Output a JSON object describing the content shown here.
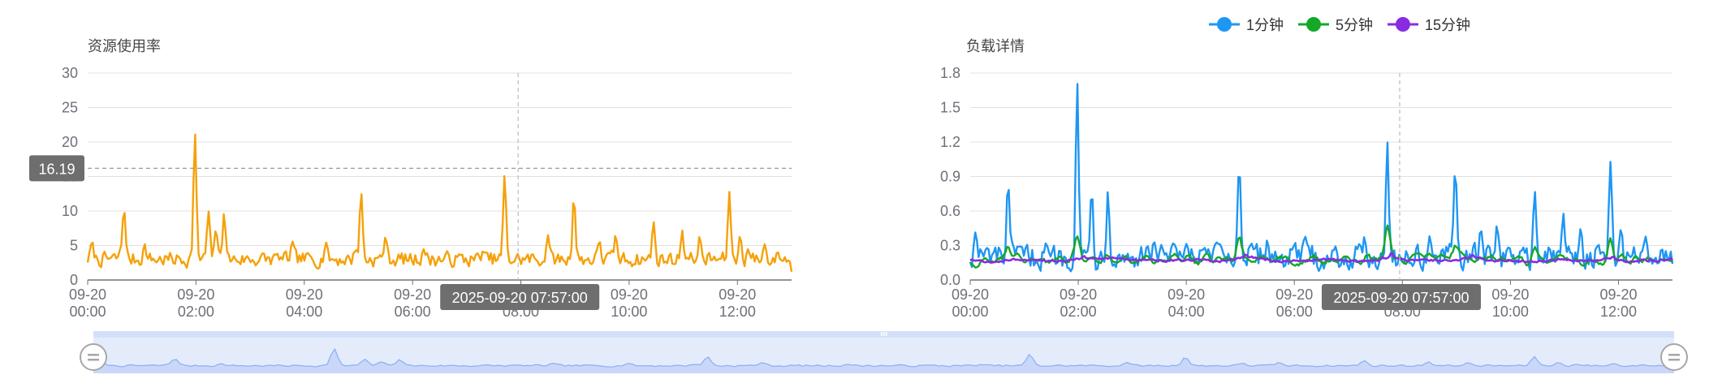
{
  "colors": {
    "usage": "#f5a10a",
    "load_1": "#1e96f3",
    "load_5": "#14a828",
    "load_15": "#8a2be2",
    "axis_pointer_bg": "#6e6e6e",
    "slider_fill": "#e4ecfb",
    "slider_line": "#8fb0f7",
    "grid": "#e0e0e0"
  },
  "legend": [
    {
      "name": "1分钟",
      "color_key": "load_1",
      "icon": "circle-line-icon"
    },
    {
      "name": "5分钟",
      "color_key": "load_5",
      "icon": "circle-line-icon"
    },
    {
      "name": "15分钟",
      "color_key": "load_15",
      "icon": "circle-line-icon"
    }
  ],
  "axis_pointer": {
    "time_label": "2025-09-20 07:57:00",
    "y_label": "16.19"
  },
  "data_zoom": {
    "handle_icon": "drag-handle-icon",
    "grip_icon": "grip-icon",
    "range_start": "09-20 00:00",
    "range_end": "09-20 13:00"
  },
  "chart_data": [
    {
      "type": "line",
      "title": "资源使用率",
      "x_ticks": [
        "09-20\n00:00",
        "09-20\n02:00",
        "09-20\n04:00",
        "09-20\n06:00",
        "09-20\n08:00",
        "09-20\n10:00",
        "09-20\n12:00"
      ],
      "x_tick_hours": [
        0,
        2,
        4,
        6,
        8,
        10,
        12
      ],
      "x_range_hours": [
        0,
        13
      ],
      "y_ticks": [
        0,
        5,
        10,
        15,
        20,
        25,
        30
      ],
      "ylim": [
        0,
        30
      ],
      "grid": true,
      "series": [
        {
          "color_key": "usage",
          "base": [
            1.5,
            4.5
          ],
          "peaks": [
            [
              0.08,
              5.6
            ],
            [
              0.6,
              4.2
            ],
            [
              0.67,
              10.6
            ],
            [
              1.05,
              5.2
            ],
            [
              1.98,
              21.5
            ],
            [
              2.23,
              10
            ],
            [
              2.37,
              7.5
            ],
            [
              2.52,
              9.8
            ],
            [
              3.5,
              3.8
            ],
            [
              3.78,
              5.6
            ],
            [
              4.4,
              5.5
            ],
            [
              4.95,
              4.5
            ],
            [
              5.05,
              12.8
            ],
            [
              5.5,
              6.3
            ],
            [
              6.2,
              4.5
            ],
            [
              7.3,
              4.2
            ],
            [
              7.7,
              15.3
            ],
            [
              8.5,
              6.5
            ],
            [
              8.98,
              12.3
            ],
            [
              9.45,
              5.8
            ],
            [
              9.75,
              6.5
            ],
            [
              10.45,
              8.5
            ],
            [
              10.98,
              7.2
            ],
            [
              11.3,
              6.3
            ],
            [
              11.85,
              12.8
            ],
            [
              12.05,
              6.5
            ],
            [
              12.2,
              4.5
            ],
            [
              12.5,
              5.2
            ],
            [
              12.75,
              4.0
            ]
          ],
          "end_value": 1.2
        }
      ]
    },
    {
      "type": "line",
      "title": "负载详情",
      "x_ticks": [
        "09-20\n00:00",
        "09-20\n02:00",
        "09-20\n04:00",
        "09-20\n06:00",
        "09-20\n08:00",
        "09-20\n10:00",
        "09-20\n12:00"
      ],
      "x_tick_hours": [
        0,
        2,
        4,
        6,
        8,
        10,
        12
      ],
      "x_range_hours": [
        0,
        13
      ],
      "y_ticks": [
        0,
        0.3,
        0.6,
        0.9,
        1.2,
        1.5,
        1.8
      ],
      "ylim": [
        0,
        1.8
      ],
      "grid": true,
      "series": [
        {
          "name": "1分钟",
          "color_key": "load_1",
          "base": [
            0.05,
            0.35
          ],
          "peaks": [
            [
              0.1,
              0.42
            ],
            [
              0.7,
              0.85
            ],
            [
              1.4,
              0.32
            ],
            [
              1.98,
              1.74
            ],
            [
              2.25,
              0.8
            ],
            [
              2.55,
              0.78
            ],
            [
              3.4,
              0.35
            ],
            [
              4.6,
              0.32
            ],
            [
              4.98,
              1.03
            ],
            [
              5.5,
              0.35
            ],
            [
              6.2,
              0.38
            ],
            [
              7.3,
              0.38
            ],
            [
              7.72,
              1.22
            ],
            [
              8.5,
              0.38
            ],
            [
              8.98,
              0.99
            ],
            [
              9.45,
              0.45
            ],
            [
              9.75,
              0.48
            ],
            [
              10.45,
              0.78
            ],
            [
              10.98,
              0.58
            ],
            [
              11.3,
              0.45
            ],
            [
              11.85,
              1.03
            ],
            [
              12.05,
              0.45
            ],
            [
              12.5,
              0.38
            ],
            [
              12.8,
              0.28
            ]
          ],
          "end_value": 0.14
        },
        {
          "name": "5分钟",
          "color_key": "load_5",
          "base": [
            0.08,
            0.28
          ],
          "peaks": [
            [
              0.7,
              0.4
            ],
            [
              1.98,
              0.52
            ],
            [
              4.98,
              0.55
            ],
            [
              7.72,
              0.69
            ],
            [
              8.98,
              0.38
            ],
            [
              10.45,
              0.38
            ],
            [
              11.85,
              0.55
            ]
          ],
          "end_value": 0.15
        },
        {
          "name": "15分钟",
          "color_key": "load_15",
          "base": [
            0.12,
            0.22
          ],
          "peaks": [
            [
              0.8,
              0.22
            ],
            [
              2.1,
              0.28
            ],
            [
              5.1,
              0.3
            ],
            [
              7.8,
              0.36
            ],
            [
              9.3,
              0.28
            ],
            [
              11.9,
              0.26
            ]
          ],
          "end_value": 0.14
        }
      ]
    }
  ]
}
